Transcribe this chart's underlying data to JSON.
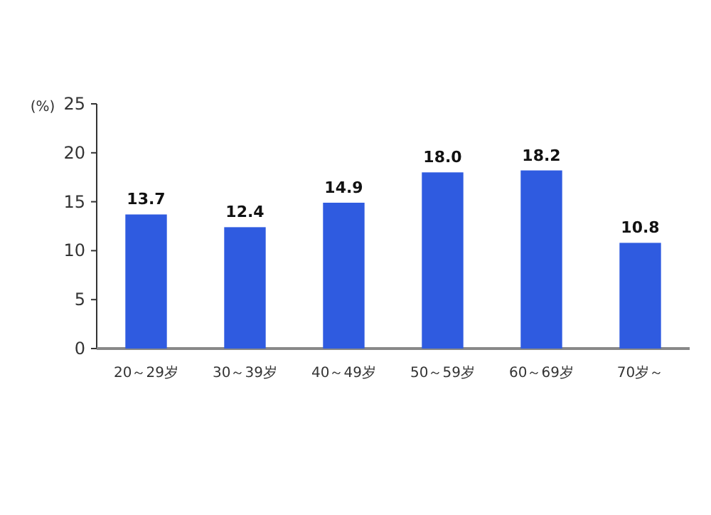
{
  "chart_data": {
    "type": "bar",
    "ylabel": "(%)",
    "categories": [
      "20～29岁",
      "30～39岁",
      "40～49岁",
      "50～59岁",
      "60～69岁",
      "70岁～"
    ],
    "series": [
      {
        "color": "#2f5be0",
        "values": [
          13.7,
          12.4,
          14.9,
          18.0,
          18.2,
          10.8
        ],
        "value_labels": [
          "13.7",
          "12.4",
          "14.9",
          "18.0",
          "18.2",
          "10.8"
        ]
      }
    ],
    "ylim": [
      0,
      25
    ],
    "yticks": [
      0,
      5,
      10,
      15,
      20,
      25
    ],
    "grid": false
  }
}
